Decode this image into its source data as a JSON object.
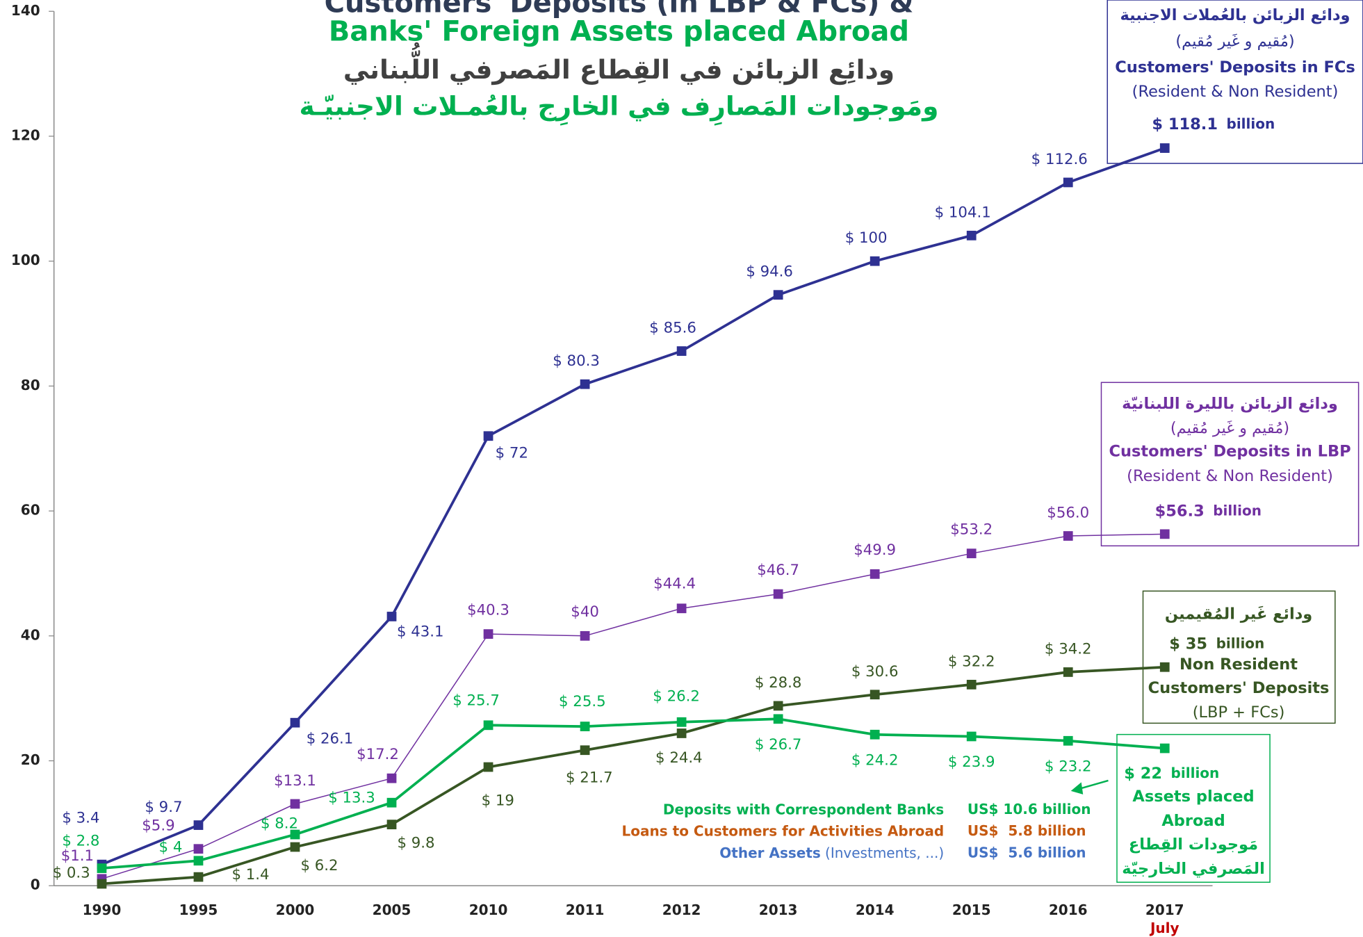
{
  "chart_data": {
    "type": "line",
    "title_lines": [
      {
        "text": "Customers' Deposits (in LBP & FCs) &",
        "color": "#2e3b55"
      },
      {
        "text": "Banks' Foreign Assets placed Abroad",
        "color": "#00b050"
      },
      {
        "text": "ودائِع الزبائن في القِطاع المَصرفي اللُّبناني",
        "color": "#404040"
      },
      {
        "text": "ومَوجودات المَصارِف في الخارِج بالعُمـلات الاجنبيّـة",
        "color": "#00b050"
      }
    ],
    "categories": [
      "1990",
      "1995",
      "2000",
      "2005",
      "2010",
      "2011",
      "2012",
      "2013",
      "2014",
      "2015",
      "2016",
      "2017"
    ],
    "last_category_note": "July",
    "ylim": [
      0,
      140
    ],
    "yticks": [
      0,
      20,
      40,
      60,
      80,
      100,
      120,
      140
    ],
    "series": [
      {
        "name": "Customers' Deposits in FCs",
        "color": "#2e3192",
        "width": 3,
        "values": [
          3.4,
          9.7,
          26.1,
          43.1,
          72,
          80.3,
          85.6,
          94.6,
          100,
          104.1,
          112.6,
          118.1
        ],
        "value_labels": [
          "$ 3.4",
          "$ 9.7",
          "$ 26.1",
          "$ 43.1",
          "$ 72",
          "$ 80.3",
          "$ 85.6",
          "$ 94.6",
          "$ 100",
          "$ 104.1",
          "$ 112.6",
          "$ 118.1"
        ]
      },
      {
        "name": "Customers' Deposits in LBP",
        "color": "#7030a0",
        "width": 1.2,
        "values": [
          1.1,
          5.9,
          13.1,
          17.2,
          40.3,
          40,
          44.4,
          46.7,
          49.9,
          53.2,
          56.0,
          56.3
        ],
        "value_labels": [
          "$1.1",
          "$5.9",
          "$13.1",
          "$17.2",
          "$40.3",
          "$40",
          "$44.4",
          "$46.7",
          "$49.9",
          "$53.2",
          "$56.0",
          "$56.3"
        ]
      },
      {
        "name": "Non Resident Customers' Deposits",
        "color": "#375623",
        "width": 3,
        "values": [
          0.3,
          1.4,
          6.2,
          9.8,
          19,
          21.7,
          24.4,
          28.8,
          30.6,
          32.2,
          34.2,
          35
        ],
        "value_labels": [
          "$ 0.3",
          "$ 1.4",
          "$ 6.2",
          "$ 9.8",
          "$ 19",
          "$ 21.7",
          "$ 24.4",
          "$ 28.8",
          "$ 30.6",
          "$ 32.2",
          "$ 34.2",
          "$ 35"
        ]
      },
      {
        "name": "Assets placed Abroad",
        "color": "#00b050",
        "width": 3,
        "values": [
          2.8,
          4,
          8.2,
          13.3,
          25.7,
          25.5,
          26.2,
          26.7,
          24.2,
          23.9,
          23.2,
          22
        ],
        "value_labels": [
          "$ 2.8",
          "$ 4",
          "$ 8.2",
          "$ 13.3",
          "$ 25.7",
          "$ 25.5",
          "$ 26.2",
          "$ 26.7",
          "$ 24.2",
          "$ 23.9",
          "$ 23.2",
          "$ 22"
        ]
      }
    ],
    "boxes": [
      {
        "border": "#2e3192",
        "unit": "billion",
        "lines": [
          {
            "text": "ودائع الزبائن بالعُملات الاجنبية",
            "color": "#2e3192",
            "bold": true
          },
          {
            "text": "(مُقيم و غَير مُقيم)",
            "color": "#2e3192",
            "bold": false
          },
          {
            "text": "Customers' Deposits in FCs",
            "color": "#2e3192",
            "bold": true
          },
          {
            "text": "(Resident & Non Resident)",
            "color": "#2e3192",
            "bold": false
          }
        ]
      },
      {
        "border": "#7030a0",
        "unit": "billion",
        "lines": [
          {
            "text": "ودائع الزبائن بالليرة اللبنانيّة",
            "color": "#7030a0",
            "bold": true
          },
          {
            "text": "(مُقيم و غَير مُقيم)",
            "color": "#7030a0",
            "bold": false
          },
          {
            "text": "Customers' Deposits in LBP",
            "color": "#7030a0",
            "bold": true
          },
          {
            "text": "(Resident & Non Resident)",
            "color": "#7030a0",
            "bold": false
          }
        ]
      },
      {
        "border": "#375623",
        "unit": "billion",
        "lines": [
          {
            "text": "ودائع غَير المُقيمين",
            "color": "#375623",
            "bold": true
          },
          {
            "text": "Non Resident",
            "color": "#375623",
            "bold": true
          },
          {
            "text": "Customers' Deposits",
            "color": "#375623",
            "bold": true
          },
          {
            "text": "(LBP + FCs)",
            "color": "#375623",
            "bold": false
          }
        ]
      },
      {
        "border": "#00b050",
        "unit": "billion",
        "lines": [
          {
            "text": "Assets placed",
            "color": "#00b050",
            "bold": true
          },
          {
            "text": "Abroad",
            "color": "#00b050",
            "bold": true
          },
          {
            "text": "مَوجودات القِطاع",
            "color": "#00b050",
            "bold": true
          },
          {
            "text": "المَصرفي الخارجيّة",
            "color": "#00b050",
            "bold": true
          }
        ]
      }
    ],
    "breakdown": [
      {
        "name": "Deposits with Correspondent Banks",
        "amount": "US$ 10.6 billion",
        "color": "#00b050"
      },
      {
        "name": "Loans to Customers for Activities Abroad",
        "amount": "US$  5.8 billion",
        "color": "#c55a11"
      },
      {
        "name": "Other Assets",
        "note": "(Investments, ...)",
        "amount": "US$  5.6 billion",
        "color": "#4472c4"
      }
    ]
  }
}
